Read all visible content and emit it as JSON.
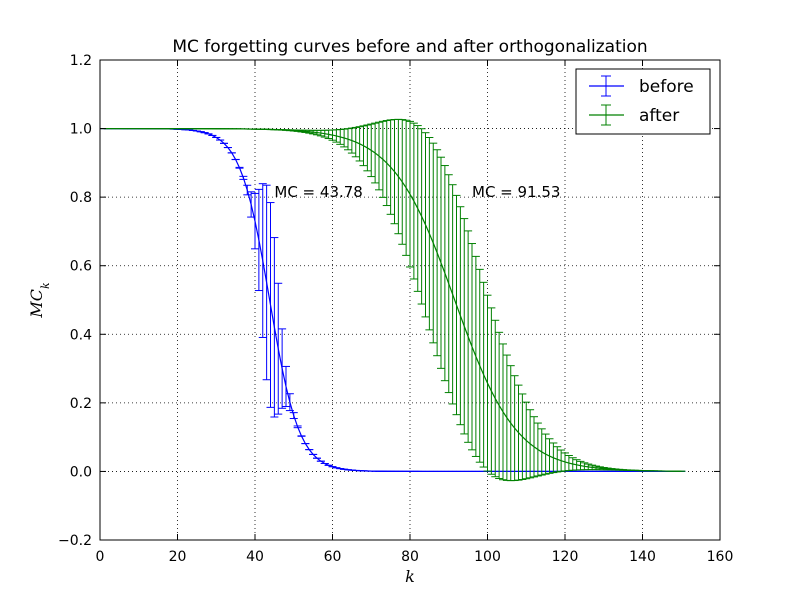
{
  "chart_data": {
    "type": "line",
    "title": "MC forgetting curves before and after orthogonalization",
    "xlabel": "k",
    "ylabel": "MC",
    "ylabel_subscript": "k",
    "xlim": [
      0,
      160
    ],
    "ylim": [
      -0.2,
      1.2
    ],
    "xticks": [
      0,
      20,
      40,
      60,
      80,
      100,
      120,
      140,
      160
    ],
    "yticks": [
      -0.2,
      0.0,
      0.2,
      0.4,
      0.6,
      0.8,
      1.0,
      1.2
    ],
    "xtick_labels": [
      "0",
      "20",
      "40",
      "60",
      "80",
      "100",
      "120",
      "140",
      "160"
    ],
    "ytick_labels": [
      "−0.2",
      "0.0",
      "0.2",
      "0.4",
      "0.6",
      "0.8",
      "1.0",
      "1.2"
    ],
    "grid": true,
    "legend_position": "top-right",
    "series": [
      {
        "name": "before",
        "color": "#0000ff",
        "model": {
          "type": "logistic",
          "center": 43.78,
          "scale": 3.8,
          "error_max": 0.3,
          "error_scale": 3.3
        },
        "k_start": 1,
        "k_end": 150,
        "annotation": "MC = 43.78",
        "annotation_at": [
          45,
          0.8
        ]
      },
      {
        "name": "after",
        "color": "#008000",
        "model": {
          "type": "logistic",
          "center": 91.53,
          "scale": 8.0,
          "error_max": 0.32,
          "error_scale": 18
        },
        "k_start": 1,
        "k_end": 150,
        "annotation": "MC = 91.53",
        "annotation_at": [
          96,
          0.8
        ]
      }
    ]
  }
}
